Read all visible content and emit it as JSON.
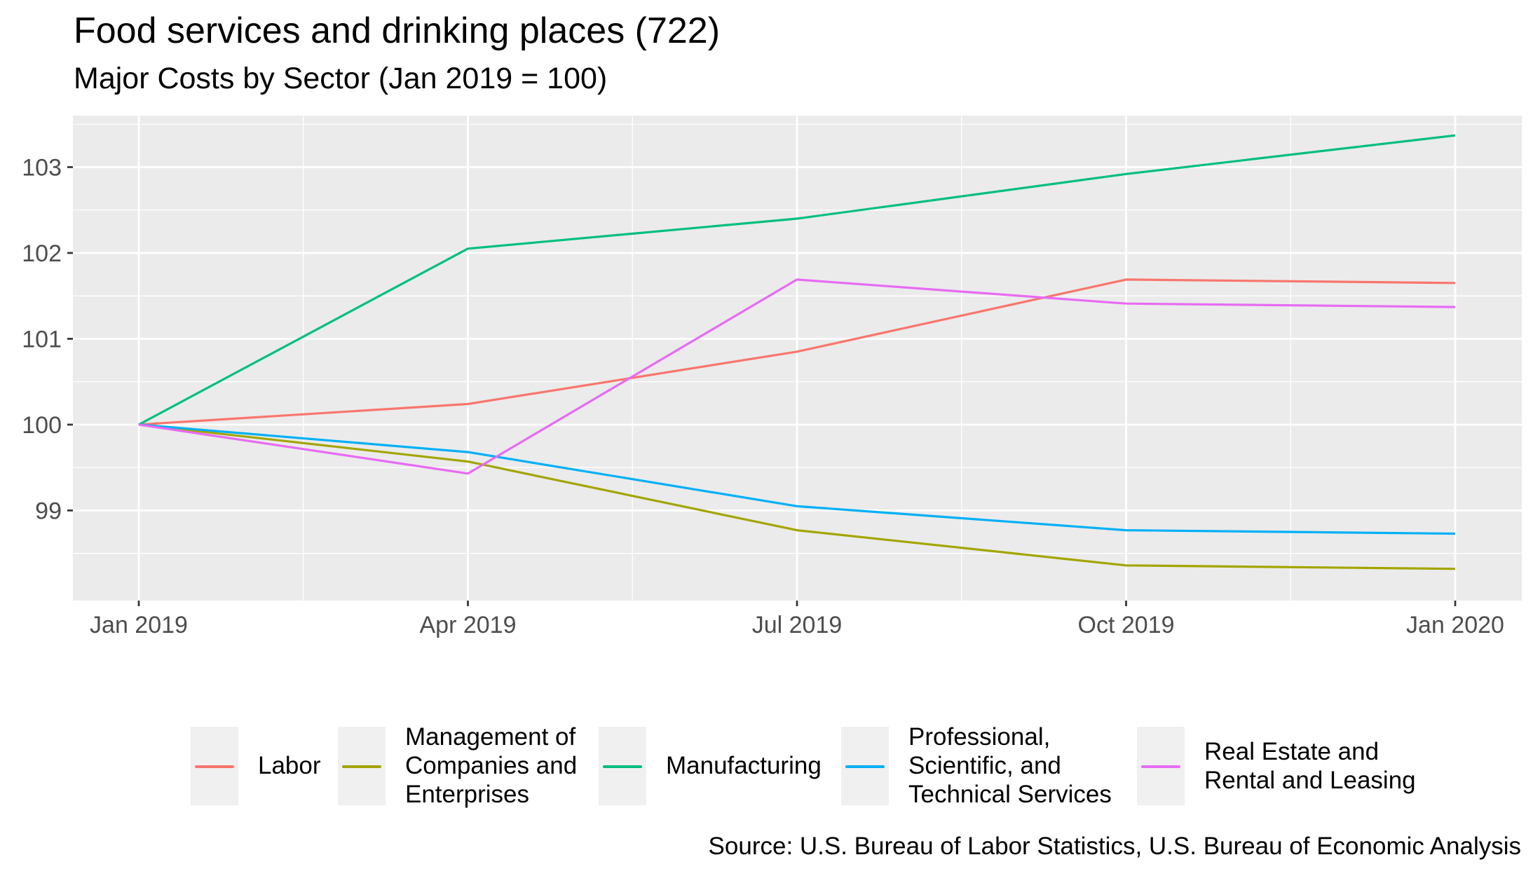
{
  "header": {
    "title": "Food services and drinking places (722)",
    "subtitle": "Major Costs by Sector (Jan 2019 = 100)"
  },
  "caption": "Source: U.S. Bureau of Labor Statistics, U.S. Bureau of Economic Analysis",
  "chart_data": {
    "type": "line",
    "title": "Food services and drinking places (722)",
    "subtitle": "Major Costs by Sector (Jan 2019 = 100)",
    "xlabel": "",
    "ylabel": "",
    "x": [
      "Jan 2019",
      "Apr 2019",
      "Jul 2019",
      "Oct 2019",
      "Jan 2020"
    ],
    "x_tick_labels": [
      "Jan 2019",
      "Apr 2019",
      "Jul 2019",
      "Oct 2019",
      "Jan 2020"
    ],
    "y_ticks": [
      99,
      100,
      101,
      102,
      103
    ],
    "y_tick_labels": [
      "99",
      "100",
      "101",
      "102",
      "103"
    ],
    "ylim": [
      97.95,
      103.6
    ],
    "grid": true,
    "legend_position": "bottom",
    "series": [
      {
        "name": "Labor",
        "color": "#F8766D",
        "values": [
          100,
          100.24,
          100.85,
          101.69,
          101.65
        ]
      },
      {
        "name": "Management of\nCompanies and\nEnterprises",
        "color": "#A3A500",
        "values": [
          100,
          99.57,
          98.77,
          98.36,
          98.32
        ]
      },
      {
        "name": "Manufacturing",
        "color": "#00BF7D",
        "values": [
          100,
          102.05,
          102.4,
          102.92,
          103.37
        ]
      },
      {
        "name": "Professional,\nScientific, and\nTechnical Services",
        "color": "#00B0F6",
        "values": [
          100,
          99.68,
          99.05,
          98.77,
          98.73
        ]
      },
      {
        "name": "Real Estate and\nRental and Leasing",
        "color": "#E76BF3",
        "values": [
          100,
          99.43,
          101.69,
          101.41,
          101.37
        ]
      }
    ]
  }
}
